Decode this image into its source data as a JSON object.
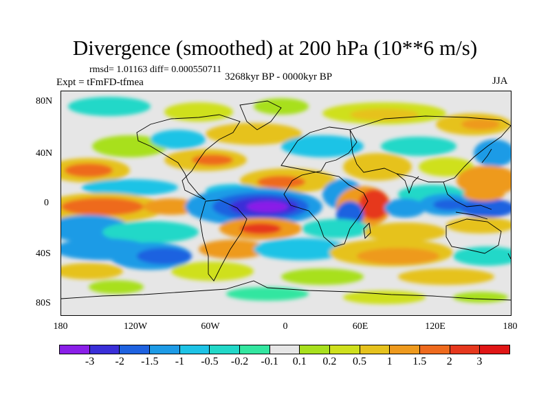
{
  "title": "Divergence (smoothed) at 200 hPa (10**6 m/s)",
  "stats": "rmsd= 1.01163  diff= 0.000550711",
  "experiment": "Expt = tFmFD-tfmea",
  "period": "3268kyr BP - 0000kyr BP",
  "season": "JJA",
  "lat_labels": [
    "80N",
    "40N",
    "0",
    "40S",
    "80S"
  ],
  "lon_labels": [
    "180",
    "120W",
    "60W",
    "0",
    "60E",
    "120E",
    "180"
  ],
  "colorbar": {
    "labels": [
      "-3",
      "-2",
      "-1.5",
      "-1",
      "-0.5",
      "-0.2",
      "-0.1",
      "0.1",
      "0.2",
      "0.5",
      "1",
      "1.5",
      "2",
      "3"
    ],
    "colors": [
      "#8a1fe8",
      "#3a2fd8",
      "#1f62e0",
      "#1e9be6",
      "#1ec3e6",
      "#22d8c8",
      "#33e6a0",
      "#e6e6e6",
      "#a8e01e",
      "#cfe01e",
      "#e6c21e",
      "#ee9a1e",
      "#ee6a1e",
      "#e6381e",
      "#e01616"
    ]
  },
  "colors": {
    "background": "#ffffff",
    "neutral": "#e6e6e6",
    "coastline": "#000000"
  }
}
